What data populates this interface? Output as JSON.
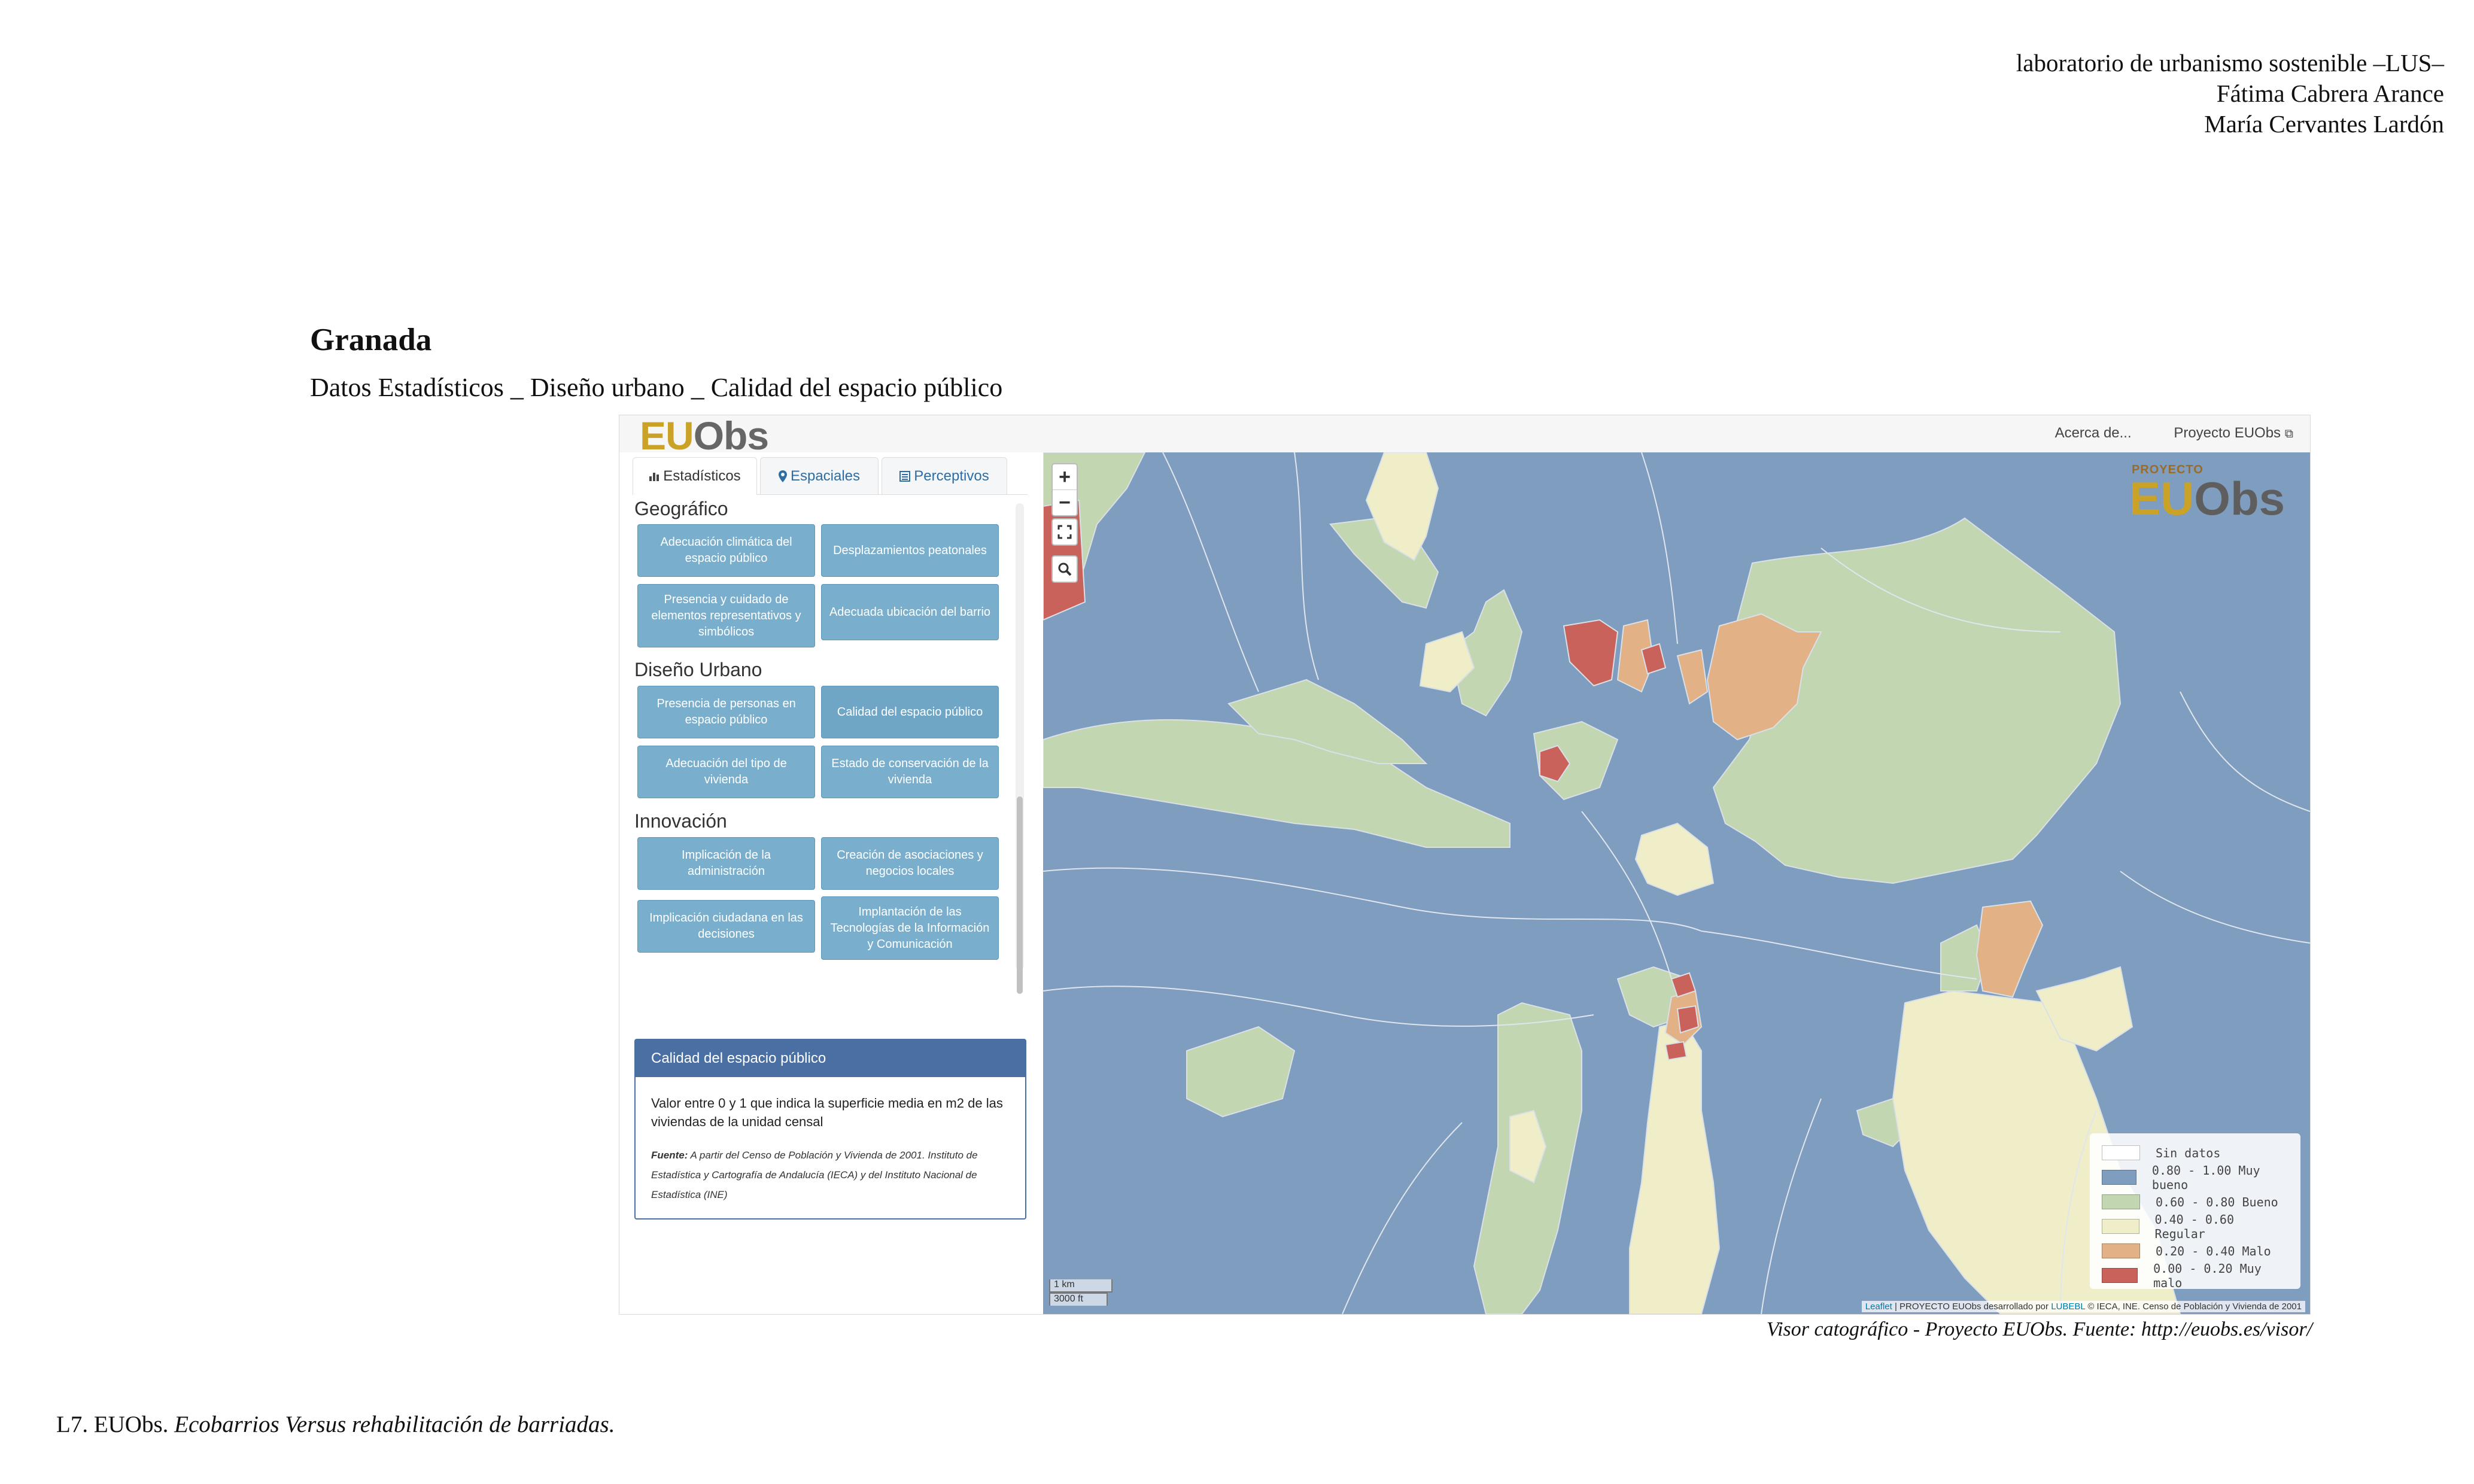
{
  "document": {
    "credits": [
      "laboratorio de urbanismo sostenible –LUS–",
      "Fátima Cabrera Arance",
      "María Cervantes Lardón"
    ],
    "title": "Granada",
    "subtitle": "Datos Estadísticos _ Diseño urbano _ Calidad del espacio público",
    "caption": "Visor catográfico - Proyecto EUObs. Fuente: http://euobs.es/visor/",
    "footer_code": "L7. EUObs.",
    "footer_italic": "Ecobarrios Versus rehabilitación de barriadas."
  },
  "topbar": {
    "logo_eu": "EU",
    "logo_obs": "Obs",
    "links": [
      "Acerca de...",
      "Proyecto EUObs"
    ]
  },
  "tabs": [
    {
      "label": "Estadísticos",
      "icon": "bar-chart-icon",
      "active": true
    },
    {
      "label": "Espaciales",
      "icon": "map-marker-icon",
      "active": false
    },
    {
      "label": "Perceptivos",
      "icon": "list-icon",
      "active": false
    }
  ],
  "groups": [
    {
      "title": "Geográfico",
      "buttons": [
        "Adecuación climática del espacio público",
        "Desplazamientos peatonales",
        "Presencia y cuidado de elementos representativos y simbólicos",
        "Adecuada ubicación del barrio"
      ]
    },
    {
      "title": "Diseño Urbano",
      "buttons": [
        "Presencia de personas en espacio público",
        "Calidad del espacio público",
        "Adecuación del tipo de vivienda",
        "Estado de conservación de la vivienda"
      ]
    },
    {
      "title": "Innovación",
      "buttons": [
        "Implicación de la administración",
        "Creación de asociaciones y negocios locales",
        "Implicación ciudadana en las decisiones",
        "Implantación de las Tecnologías de la Información y Comunicación"
      ]
    }
  ],
  "info": {
    "title": "Calidad del espacio público",
    "description": "Valor entre 0 y 1 que indica la superficie media en m2 de las viviendas de la unidad censal",
    "source_label": "Fuente:",
    "source_text": "A partir del Censo de Población y Vivienda de 2001. Instituto de Estadística y Cartografía de Andalucía (IECA) y del Instituto Nacional de Estadística (INE)"
  },
  "map": {
    "zoom_in": "+",
    "zoom_out": "−",
    "watermark_small": "PROYECTO",
    "watermark_eu": "EU",
    "watermark_obs": "Obs",
    "legend": [
      {
        "label": "Sin datos",
        "color": "#ffffff"
      },
      {
        "label": "0.80 - 1.00 Muy bueno",
        "color": "#7f9dbe"
      },
      {
        "label": "0.60 - 0.80 Bueno",
        "color": "#c3d6b2"
      },
      {
        "label": "0.40 - 0.60 Regular",
        "color": "#efeec8"
      },
      {
        "label": "0.20 - 0.40 Malo",
        "color": "#e2b185"
      },
      {
        "label": "0.00 - 0.20 Muy malo",
        "color": "#c8625a"
      }
    ],
    "scale_km": "1 km",
    "scale_ft": "3000 ft",
    "attribution_link1": "Leaflet",
    "attribution_mid": " | PROYECTO EUObs desarrollado por ",
    "attribution_link2": "LUBEBL",
    "attribution_end": " © IECA, INE. Censo de Población y Vivienda de 2001"
  }
}
